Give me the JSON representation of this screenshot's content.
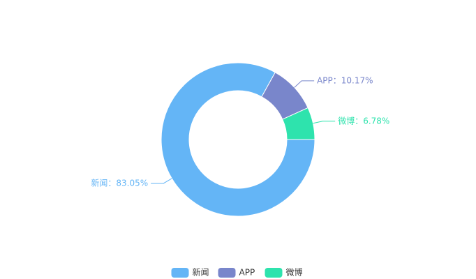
{
  "chart_data": {
    "type": "donut",
    "categories": [
      "新闻",
      "APP",
      "微博"
    ],
    "values": [
      83.05,
      10.17,
      6.78
    ],
    "value_labels": [
      "新闻：83.05%",
      "APP：10.17%",
      "微博：6.78%"
    ],
    "colors": [
      "#64b5f6",
      "#7986cb",
      "#2ee3ad"
    ],
    "legend": "bottom"
  }
}
